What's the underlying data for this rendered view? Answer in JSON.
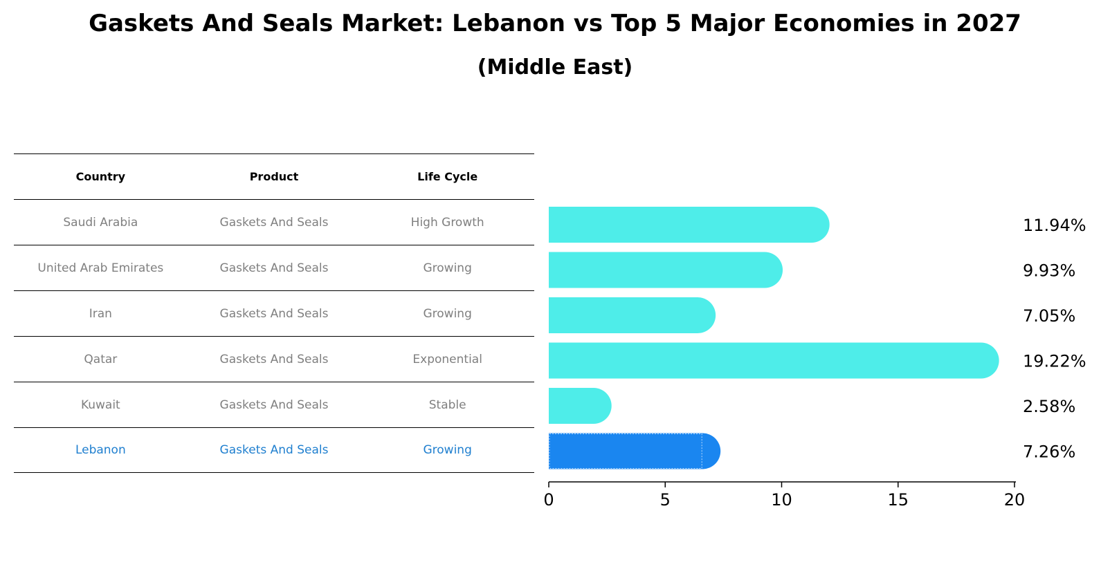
{
  "title": "Gaskets And Seals Market: Lebanon vs Top 5 Major Economies in 2027",
  "subtitle": "(Middle East)",
  "table": {
    "headers": [
      "Country",
      "Product",
      "Life Cycle"
    ],
    "rows": [
      {
        "country": "Saudi Arabia",
        "product": "Gaskets And Seals",
        "life_cycle": "High Growth"
      },
      {
        "country": "United Arab Emirates",
        "product": "Gaskets And Seals",
        "life_cycle": "Growing"
      },
      {
        "country": "Iran",
        "product": "Gaskets And Seals",
        "life_cycle": "Growing"
      },
      {
        "country": "Qatar",
        "product": "Gaskets And Seals",
        "life_cycle": "Exponential"
      },
      {
        "country": "Kuwait",
        "product": "Gaskets And Seals",
        "life_cycle": "Stable"
      },
      {
        "country": "Lebanon",
        "product": "Gaskets And Seals",
        "life_cycle": "Growing"
      }
    ]
  },
  "chart_data": {
    "type": "bar",
    "orientation": "horizontal",
    "categories": [
      "Saudi Arabia",
      "United Arab Emirates",
      "Iran",
      "Qatar",
      "Kuwait",
      "Lebanon"
    ],
    "values": [
      11.94,
      9.93,
      7.05,
      19.22,
      2.58,
      7.26
    ],
    "value_labels": [
      "11.94%",
      "9.93%",
      "7.05%",
      "19.22%",
      "2.58%",
      "7.26%"
    ],
    "highlight": "Lebanon",
    "xlim": [
      0,
      20
    ],
    "xticks": [
      0,
      5,
      10,
      15,
      20
    ],
    "colors": {
      "default": "#4eede9",
      "highlight": "#1a86f0"
    },
    "grid": false
  }
}
